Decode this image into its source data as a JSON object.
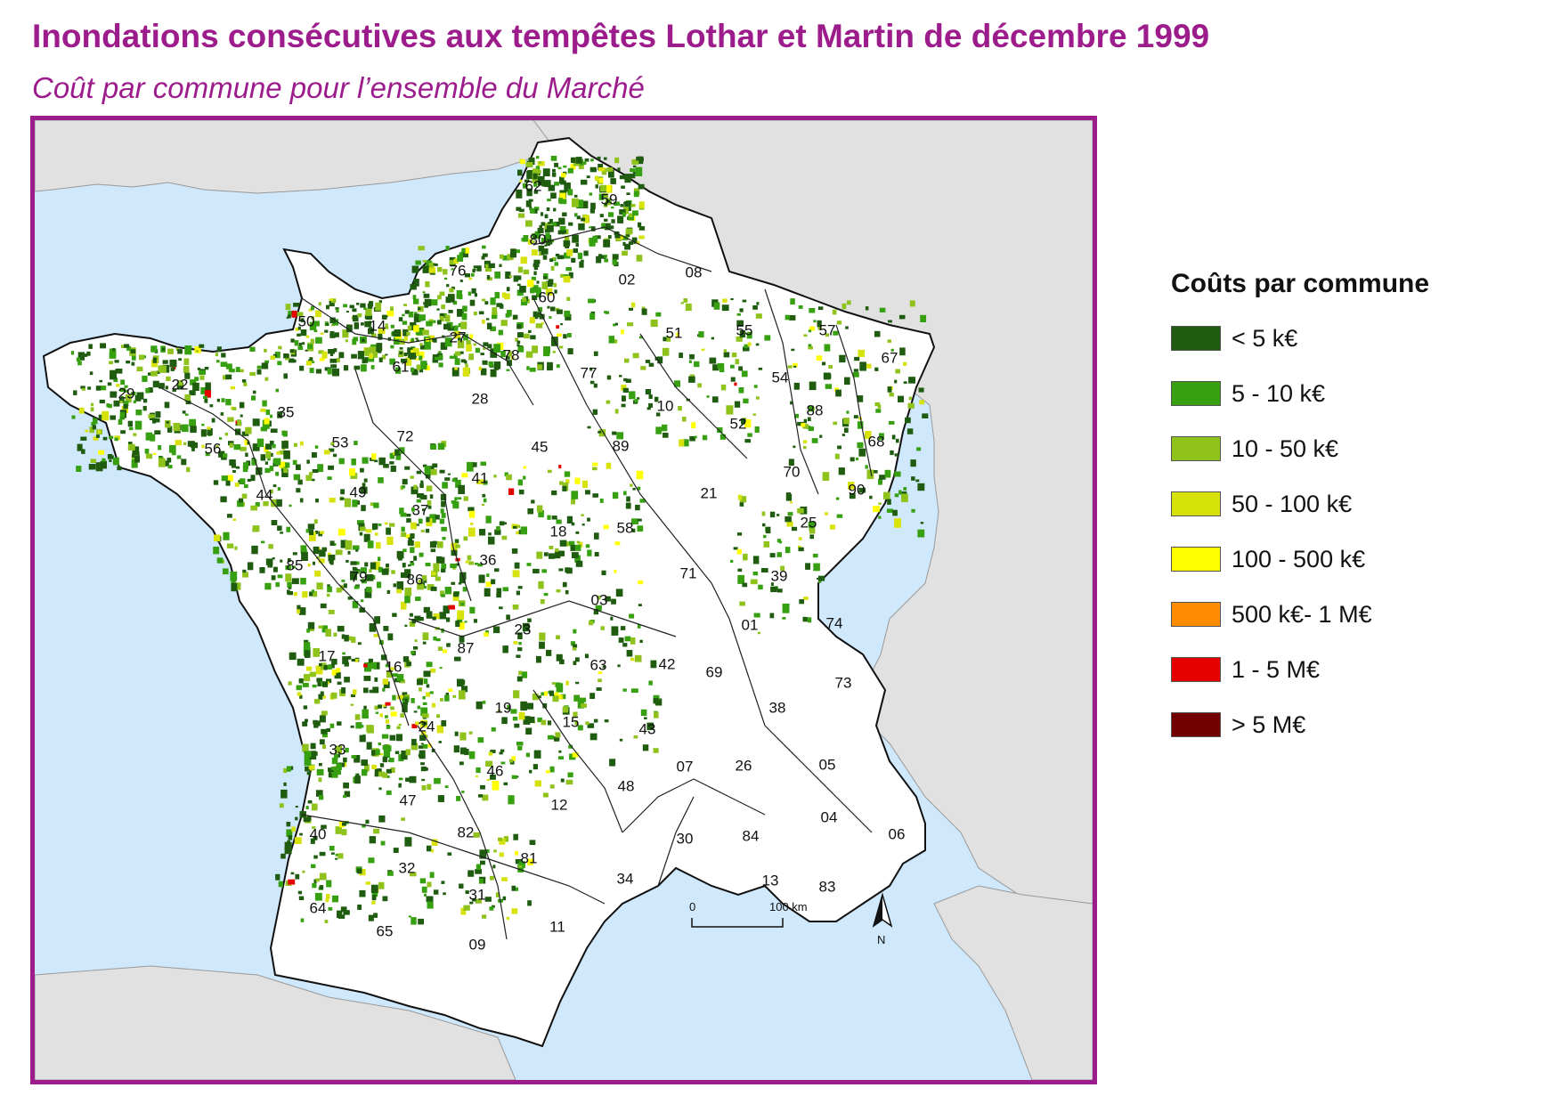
{
  "title": "Inondations consécutives aux tempêtes Lothar et Martin de décembre 1999",
  "subtitle": "Coût par commune pour l’ensemble du Marché",
  "legend": {
    "title": "Coûts par commune",
    "items": [
      {
        "label": "< 5 k€",
        "color": "#1f5c0f"
      },
      {
        "label": "5 - 10 k€",
        "color": "#36a010"
      },
      {
        "label": "10 - 50 k€",
        "color": "#8fc21b"
      },
      {
        "label": "50 - 100 k€",
        "color": "#d6e20a"
      },
      {
        "label": "100 - 500 k€",
        "color": "#ffff00"
      },
      {
        "label": "500 k€- 1 M€",
        "color": "#ff8c00"
      },
      {
        "label": "1 - 5 M€",
        "color": "#e60000"
      },
      {
        "label": "> 5 M€",
        "color": "#730000"
      }
    ]
  },
  "scale": {
    "start": "0",
    "end": "100 km"
  },
  "north": "N",
  "colors": {
    "sea": "#cfe8fb",
    "foreign_land": "#e1e1e1",
    "france": "#ffffff",
    "frame": "#9c1c8c"
  },
  "departments": [
    "62",
    "59",
    "80",
    "76",
    "02",
    "08",
    "60",
    "50",
    "14",
    "27",
    "57",
    "67",
    "55",
    "51",
    "54",
    "78",
    "77",
    "29",
    "22",
    "61",
    "35",
    "28",
    "10",
    "52",
    "88",
    "56",
    "53",
    "72",
    "45",
    "89",
    "68",
    "70",
    "90",
    "44",
    "49",
    "41",
    "21",
    "37",
    "25",
    "18",
    "58",
    "85",
    "79",
    "36",
    "86",
    "71",
    "39",
    "03",
    "74",
    "01",
    "23",
    "17",
    "87",
    "16",
    "63",
    "42",
    "69",
    "73",
    "19",
    "38",
    "24",
    "15",
    "43",
    "33",
    "05",
    "07",
    "26",
    "46",
    "48",
    "47",
    "12",
    "04",
    "40",
    "82",
    "30",
    "84",
    "06",
    "32",
    "81",
    "13",
    "83",
    "34",
    "64",
    "31",
    "65",
    "11",
    "09"
  ]
}
